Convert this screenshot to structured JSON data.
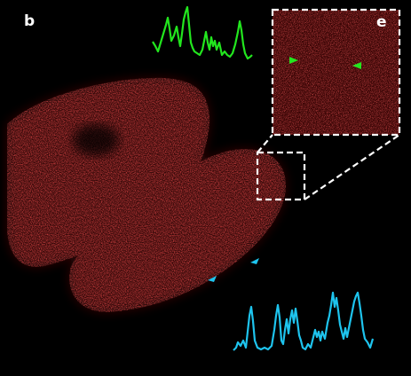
{
  "panel_labels": {
    "main": "b",
    "inset": "e"
  },
  "colors": {
    "background": "#000000",
    "signal": "#d42020",
    "green_profile": "#22e61e",
    "cyan_profile": "#1ec4ee",
    "box_outline": "#ffffff"
  },
  "markers": {
    "green_arrowheads": 2,
    "cyan_arrowheads": 2
  }
}
